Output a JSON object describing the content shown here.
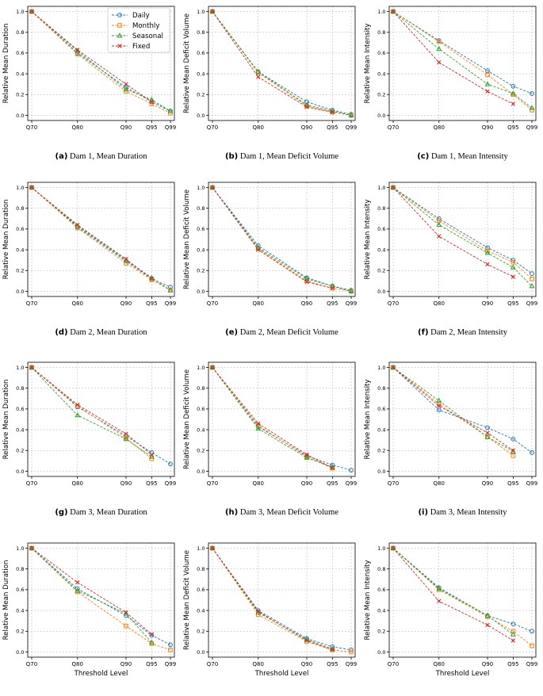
{
  "series_styles": [
    {
      "name": "Daily",
      "color": "#1f77b4",
      "marker": "circle"
    },
    {
      "name": "Monthly",
      "color": "#ff7f0e",
      "marker": "square"
    },
    {
      "name": "Seasonal",
      "color": "#2ca02c",
      "marker": "triangle"
    },
    {
      "name": "Fixed",
      "color": "#d62728",
      "marker": "x"
    }
  ],
  "chart_data": [
    {
      "type": "line",
      "caption_letter": "(a)",
      "caption_text": "Dam 1, Mean Duration",
      "ylabel": "Relative Mean Duration",
      "xlabel": "",
      "ylim": [
        -0.05,
        1.05
      ],
      "yticks": [
        "0.0",
        "0.2",
        "0.4",
        "0.6",
        "0.8",
        "1.0"
      ],
      "x": [
        "Q70",
        "Q80",
        "Q90",
        "Q95",
        "Q99"
      ],
      "legend": "top-right",
      "grid": true,
      "series": [
        {
          "name": "Daily",
          "values": [
            1.0,
            0.6,
            0.27,
            0.13,
            0.04
          ]
        },
        {
          "name": "Monthly",
          "values": [
            1.0,
            0.59,
            0.23,
            0.11,
            0.02
          ]
        },
        {
          "name": "Seasonal",
          "values": [
            1.0,
            0.62,
            0.25,
            0.15,
            0.04
          ]
        },
        {
          "name": "Fixed",
          "values": [
            1.0,
            0.63,
            0.3,
            0.13,
            null
          ]
        }
      ]
    },
    {
      "type": "line",
      "caption_letter": "(b)",
      "caption_text": "Dam 1, Mean Deficit Volume",
      "ylabel": "Relative Mean Deficit Volume",
      "xlabel": "",
      "ylim": [
        -0.05,
        1.05
      ],
      "yticks": [
        "0.0",
        "0.2",
        "0.4",
        "0.6",
        "0.8",
        "1.0"
      ],
      "x": [
        "Q70",
        "Q80",
        "Q90",
        "Q95",
        "Q99"
      ],
      "legend": "",
      "grid": true,
      "series": [
        {
          "name": "Daily",
          "values": [
            1.0,
            0.42,
            0.13,
            0.05,
            0.01
          ]
        },
        {
          "name": "Monthly",
          "values": [
            1.0,
            0.41,
            0.09,
            0.03,
            0.0
          ]
        },
        {
          "name": "Seasonal",
          "values": [
            1.0,
            0.42,
            0.1,
            0.04,
            0.0
          ]
        },
        {
          "name": "Fixed",
          "values": [
            1.0,
            0.37,
            0.08,
            0.03,
            null
          ]
        }
      ]
    },
    {
      "type": "line",
      "caption_letter": "(c)",
      "caption_text": "Dam 1, Mean Intensity",
      "ylabel": "Relative Mean Intensity",
      "xlabel": "",
      "ylim": [
        -0.05,
        1.05
      ],
      "yticks": [
        "0.0",
        "0.2",
        "0.4",
        "0.6",
        "0.8",
        "1.0"
      ],
      "x": [
        "Q70",
        "Q80",
        "Q90",
        "Q95",
        "Q99"
      ],
      "legend": "",
      "grid": true,
      "series": [
        {
          "name": "Daily",
          "values": [
            1.0,
            0.72,
            0.43,
            0.28,
            0.21
          ]
        },
        {
          "name": "Monthly",
          "values": [
            1.0,
            0.71,
            0.39,
            0.2,
            0.05
          ]
        },
        {
          "name": "Seasonal",
          "values": [
            1.0,
            0.64,
            0.3,
            0.21,
            0.07
          ]
        },
        {
          "name": "Fixed",
          "values": [
            1.0,
            0.51,
            0.23,
            0.11,
            null
          ]
        }
      ]
    },
    {
      "type": "line",
      "caption_letter": "(d)",
      "caption_text": "Dam 2, Mean Duration",
      "ylabel": "Relative Mean Duration",
      "xlabel": "",
      "ylim": [
        -0.05,
        1.05
      ],
      "yticks": [
        "0.0",
        "0.2",
        "0.4",
        "0.6",
        "0.8",
        "1.0"
      ],
      "x": [
        "Q70",
        "Q80",
        "Q90",
        "Q95",
        "Q99"
      ],
      "legend": "",
      "grid": true,
      "series": [
        {
          "name": "Daily",
          "values": [
            1.0,
            0.62,
            0.29,
            0.12,
            0.04
          ]
        },
        {
          "name": "Monthly",
          "values": [
            1.0,
            0.61,
            0.27,
            0.11,
            0.01
          ]
        },
        {
          "name": "Seasonal",
          "values": [
            1.0,
            0.63,
            0.3,
            0.13,
            0.01
          ]
        },
        {
          "name": "Fixed",
          "values": [
            1.0,
            0.64,
            0.31,
            0.12,
            null
          ]
        }
      ]
    },
    {
      "type": "line",
      "caption_letter": "(e)",
      "caption_text": "Dam 2, Mean Deficit Volume",
      "ylabel": "Relative Mean Deficit Volume",
      "xlabel": "",
      "ylim": [
        -0.05,
        1.05
      ],
      "yticks": [
        "0.0",
        "0.2",
        "0.4",
        "0.6",
        "0.8",
        "1.0"
      ],
      "x": [
        "Q70",
        "Q80",
        "Q90",
        "Q95",
        "Q99"
      ],
      "legend": "",
      "grid": true,
      "series": [
        {
          "name": "Daily",
          "values": [
            1.0,
            0.44,
            0.13,
            0.05,
            0.01
          ]
        },
        {
          "name": "Monthly",
          "values": [
            1.0,
            0.41,
            0.1,
            0.03,
            0.0
          ]
        },
        {
          "name": "Seasonal",
          "values": [
            1.0,
            0.42,
            0.12,
            0.05,
            0.0
          ]
        },
        {
          "name": "Fixed",
          "values": [
            1.0,
            0.4,
            0.09,
            0.03,
            null
          ]
        }
      ]
    },
    {
      "type": "line",
      "caption_letter": "(f)",
      "caption_text": "Dam 2, Mean Intensity",
      "ylabel": "Relative Mean Intensity",
      "xlabel": "",
      "ylim": [
        -0.05,
        1.05
      ],
      "yticks": [
        "0.0",
        "0.2",
        "0.4",
        "0.6",
        "0.8",
        "1.0"
      ],
      "x": [
        "Q70",
        "Q80",
        "Q90",
        "Q95",
        "Q99"
      ],
      "legend": "",
      "grid": true,
      "series": [
        {
          "name": "Daily",
          "values": [
            1.0,
            0.7,
            0.42,
            0.3,
            0.17
          ]
        },
        {
          "name": "Monthly",
          "values": [
            1.0,
            0.68,
            0.39,
            0.28,
            0.12
          ]
        },
        {
          "name": "Seasonal",
          "values": [
            1.0,
            0.64,
            0.37,
            0.23,
            0.05
          ]
        },
        {
          "name": "Fixed",
          "values": [
            1.0,
            0.53,
            0.26,
            0.14,
            null
          ]
        }
      ]
    },
    {
      "type": "line",
      "caption_letter": "(g)",
      "caption_text": "Dam 3, Mean Duration",
      "ylabel": "Relative Mean Duration",
      "xlabel": "",
      "ylim": [
        -0.05,
        1.05
      ],
      "yticks": [
        "0.0",
        "0.2",
        "0.4",
        "0.6",
        "0.8",
        "1.0"
      ],
      "x": [
        "Q70",
        "Q80",
        "Q90",
        "Q95",
        "Q99"
      ],
      "legend": "",
      "grid": true,
      "series": [
        {
          "name": "Daily",
          "values": [
            1.0,
            0.62,
            0.34,
            0.18,
            0.07
          ]
        },
        {
          "name": "Monthly",
          "values": [
            1.0,
            0.63,
            0.32,
            0.12,
            null
          ]
        },
        {
          "name": "Seasonal",
          "values": [
            1.0,
            0.54,
            0.31,
            0.14,
            null
          ]
        },
        {
          "name": "Fixed",
          "values": [
            1.0,
            0.64,
            0.36,
            0.16,
            null
          ]
        }
      ]
    },
    {
      "type": "line",
      "caption_letter": "(h)",
      "caption_text": "Dam 3, Mean Deficit Volume",
      "ylabel": "Relative Mean Deficit Volume",
      "xlabel": "",
      "ylim": [
        -0.05,
        1.05
      ],
      "yticks": [
        "0.0",
        "0.2",
        "0.4",
        "0.6",
        "0.8",
        "1.0"
      ],
      "x": [
        "Q70",
        "Q80",
        "Q90",
        "Q95",
        "Q99"
      ],
      "legend": "",
      "grid": true,
      "series": [
        {
          "name": "Daily",
          "values": [
            1.0,
            0.43,
            0.15,
            0.06,
            0.01
          ]
        },
        {
          "name": "Monthly",
          "values": [
            1.0,
            0.44,
            0.14,
            0.03,
            null
          ]
        },
        {
          "name": "Seasonal",
          "values": [
            1.0,
            0.41,
            0.13,
            0.04,
            null
          ]
        },
        {
          "name": "Fixed",
          "values": [
            1.0,
            0.46,
            0.16,
            0.03,
            null
          ]
        }
      ]
    },
    {
      "type": "line",
      "caption_letter": "(i)",
      "caption_text": "Dam 3, Mean Intensity",
      "ylabel": "Relative Mean Intensity",
      "xlabel": "",
      "ylim": [
        -0.05,
        1.05
      ],
      "yticks": [
        "0.0",
        "0.2",
        "0.4",
        "0.6",
        "0.8",
        "1.0"
      ],
      "x": [
        "Q70",
        "Q80",
        "Q90",
        "Q95",
        "Q99"
      ],
      "legend": "",
      "grid": true,
      "series": [
        {
          "name": "Daily",
          "values": [
            1.0,
            0.59,
            0.42,
            0.31,
            0.18
          ]
        },
        {
          "name": "Monthly",
          "values": [
            1.0,
            0.65,
            0.33,
            0.15,
            null
          ]
        },
        {
          "name": "Seasonal",
          "values": [
            1.0,
            0.68,
            0.33,
            0.19,
            null
          ]
        },
        {
          "name": "Fixed",
          "values": [
            1.0,
            0.63,
            0.37,
            0.2,
            null
          ]
        }
      ]
    },
    {
      "type": "line",
      "caption_letter": "(j)",
      "caption_text": "Dam 4, Mean Duration",
      "ylabel": "Relative Mean Duration",
      "xlabel": "Threshold Level",
      "ylim": [
        -0.05,
        1.05
      ],
      "yticks": [
        "0.0",
        "0.2",
        "0.4",
        "0.6",
        "0.8",
        "1.0"
      ],
      "x": [
        "Q70",
        "Q80",
        "Q90",
        "Q95",
        "Q99"
      ],
      "legend": "",
      "grid": true,
      "series": [
        {
          "name": "Daily",
          "values": [
            1.0,
            0.61,
            0.35,
            0.16,
            0.07
          ]
        },
        {
          "name": "Monthly",
          "values": [
            1.0,
            0.58,
            0.25,
            0.08,
            0.02
          ]
        },
        {
          "name": "Seasonal",
          "values": [
            1.0,
            0.59,
            0.37,
            0.09,
            null
          ]
        },
        {
          "name": "Fixed",
          "values": [
            1.0,
            0.67,
            0.38,
            0.17,
            null
          ]
        }
      ]
    },
    {
      "type": "line",
      "caption_letter": "(k)",
      "caption_text": "Dam 4, Mean Deficit Volume",
      "ylabel": "Relative Mean Deficit Volume",
      "xlabel": "Threshold Level",
      "ylim": [
        -0.05,
        1.05
      ],
      "yticks": [
        "0.0",
        "0.2",
        "0.4",
        "0.6",
        "0.8",
        "1.0"
      ],
      "x": [
        "Q70",
        "Q80",
        "Q90",
        "Q95",
        "Q99"
      ],
      "legend": "",
      "grid": true,
      "series": [
        {
          "name": "Daily",
          "values": [
            1.0,
            0.4,
            0.13,
            0.05,
            0.02
          ]
        },
        {
          "name": "Monthly",
          "values": [
            1.0,
            0.36,
            0.1,
            0.02,
            0.0
          ]
        },
        {
          "name": "Seasonal",
          "values": [
            1.0,
            0.38,
            0.12,
            0.03,
            null
          ]
        },
        {
          "name": "Fixed",
          "values": [
            1.0,
            0.39,
            0.11,
            0.02,
            null
          ]
        }
      ]
    },
    {
      "type": "line",
      "caption_letter": "(l)",
      "caption_text": "Dam 4, Mean Intensity",
      "ylabel": "Relative Mean Intensity",
      "xlabel": "Threshold Level",
      "ylim": [
        -0.05,
        1.05
      ],
      "yticks": [
        "0.0",
        "0.2",
        "0.4",
        "0.6",
        "0.8",
        "1.0"
      ],
      "x": [
        "Q70",
        "Q80",
        "Q90",
        "Q95",
        "Q99"
      ],
      "legend": "",
      "grid": true,
      "series": [
        {
          "name": "Daily",
          "values": [
            1.0,
            0.62,
            0.35,
            0.27,
            0.2
          ]
        },
        {
          "name": "Monthly",
          "values": [
            1.0,
            0.6,
            0.34,
            0.2,
            0.06
          ]
        },
        {
          "name": "Seasonal",
          "values": [
            1.0,
            0.61,
            0.35,
            0.17,
            null
          ]
        },
        {
          "name": "Fixed",
          "values": [
            1.0,
            0.49,
            0.26,
            0.11,
            null
          ]
        }
      ]
    }
  ]
}
